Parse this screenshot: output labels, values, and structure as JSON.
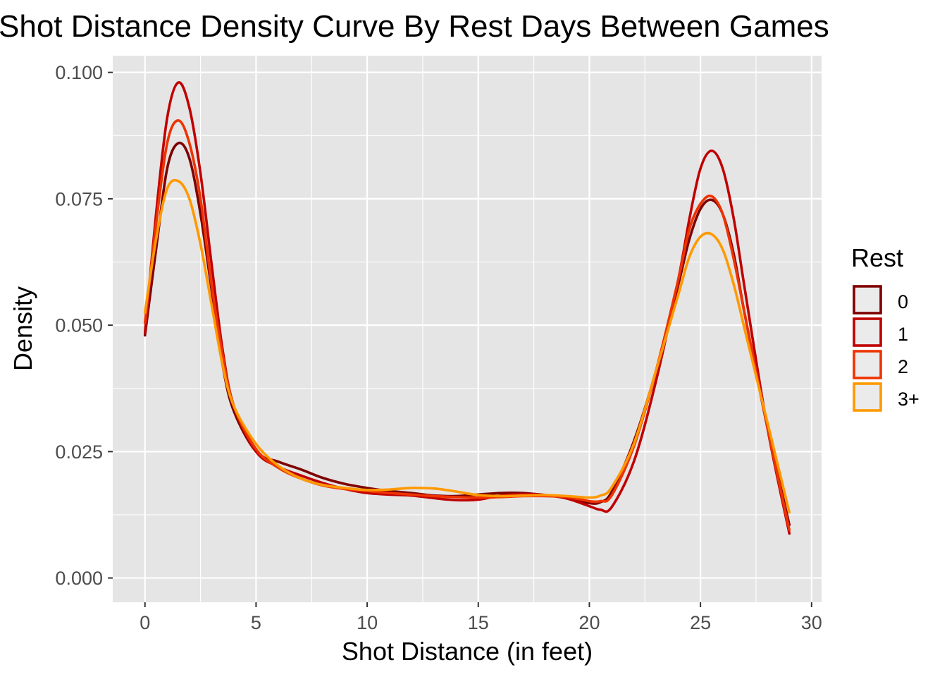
{
  "chart_data": {
    "type": "line",
    "title": "Shot Distance Density Curve By Rest Days Between Games",
    "xlabel": "Shot Distance (in feet)",
    "ylabel": "Density",
    "xlim": [
      -1.45,
      30.45
    ],
    "ylim": [
      -0.0048,
      0.1033
    ],
    "x_ticks": [
      0,
      5,
      10,
      15,
      20,
      25,
      30
    ],
    "x_tick_labels": [
      "0",
      "5",
      "10",
      "15",
      "20",
      "25",
      "30"
    ],
    "y_ticks": [
      0,
      0.025,
      0.05,
      0.075,
      0.1
    ],
    "y_tick_labels": [
      "0.000",
      "0.025",
      "0.050",
      "0.075",
      "0.100"
    ],
    "grid": true,
    "legend": {
      "title": "Rest",
      "position": "right"
    },
    "x": [
      0,
      0.5,
      1,
      1.5,
      2,
      2.5,
      3,
      3.5,
      4,
      5,
      6,
      7,
      8,
      9,
      10,
      11,
      12,
      13,
      14,
      15,
      16,
      17,
      18,
      19,
      20,
      20.5,
      21,
      22,
      23,
      24,
      24.5,
      25,
      25.5,
      26,
      26.5,
      27,
      28,
      29
    ],
    "series": [
      {
        "name": "0",
        "color": "#7f0000",
        "values": [
          0.048,
          0.065,
          0.081,
          0.086,
          0.083,
          0.072,
          0.057,
          0.042,
          0.033,
          0.025,
          0.023,
          0.0215,
          0.0198,
          0.0186,
          0.0178,
          0.0172,
          0.0168,
          0.0163,
          0.0162,
          0.0165,
          0.0168,
          0.0168,
          0.0164,
          0.0158,
          0.0148,
          0.015,
          0.017,
          0.027,
          0.041,
          0.058,
          0.067,
          0.073,
          0.0748,
          0.072,
          0.064,
          0.052,
          0.03,
          0.0105
        ]
      },
      {
        "name": "1",
        "color": "#c00000",
        "values": [
          0.0485,
          0.072,
          0.091,
          0.098,
          0.093,
          0.08,
          0.062,
          0.045,
          0.034,
          0.025,
          0.022,
          0.0203,
          0.0188,
          0.0176,
          0.0168,
          0.0165,
          0.0163,
          0.0158,
          0.0154,
          0.0155,
          0.0163,
          0.0166,
          0.0164,
          0.0157,
          0.0142,
          0.0135,
          0.014,
          0.023,
          0.039,
          0.059,
          0.071,
          0.081,
          0.0845,
          0.081,
          0.071,
          0.057,
          0.03,
          0.0088
        ]
      },
      {
        "name": "2",
        "color": "#ee3300",
        "values": [
          0.0505,
          0.07,
          0.086,
          0.0905,
          0.086,
          0.075,
          0.058,
          0.044,
          0.034,
          0.0255,
          0.0218,
          0.0197,
          0.0183,
          0.0176,
          0.0172,
          0.0168,
          0.0165,
          0.0162,
          0.016,
          0.0159,
          0.016,
          0.0162,
          0.0162,
          0.016,
          0.0152,
          0.0152,
          0.0163,
          0.026,
          0.041,
          0.059,
          0.069,
          0.074,
          0.0755,
          0.072,
          0.063,
          0.052,
          0.03,
          0.0095
        ]
      },
      {
        "name": "3+",
        "color": "#ff9900",
        "values": [
          0.0525,
          0.067,
          0.077,
          0.0785,
          0.075,
          0.066,
          0.054,
          0.042,
          0.034,
          0.0265,
          0.0222,
          0.0197,
          0.0184,
          0.0178,
          0.0174,
          0.0175,
          0.0178,
          0.0177,
          0.0171,
          0.0164,
          0.0162,
          0.0163,
          0.0164,
          0.0162,
          0.0159,
          0.0163,
          0.0179,
          0.0265,
          0.041,
          0.056,
          0.0635,
          0.0675,
          0.068,
          0.065,
          0.058,
          0.049,
          0.031,
          0.013
        ]
      }
    ]
  }
}
